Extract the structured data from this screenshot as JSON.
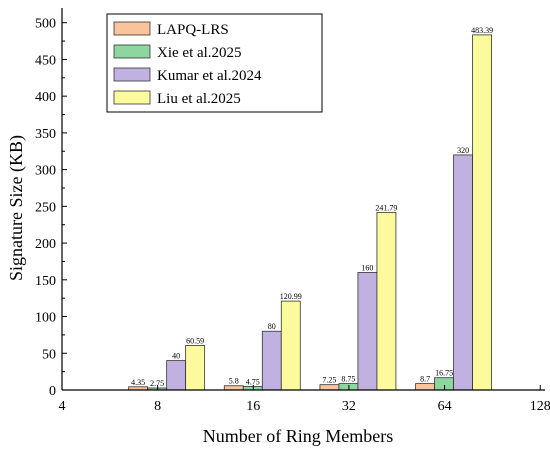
{
  "chart_data": {
    "type": "bar",
    "xlabel": "Number of Ring Members",
    "ylabel": "Signature Size (KB)",
    "x_ticks": [
      "4",
      "8",
      "16",
      "32",
      "64",
      "128"
    ],
    "categories": [
      "8",
      "16",
      "32",
      "64"
    ],
    "ylim": [
      0,
      520
    ],
    "y_ticks": [
      0,
      50,
      100,
      150,
      200,
      250,
      300,
      350,
      400,
      450,
      500
    ],
    "legend_position": "top-left",
    "series": [
      {
        "name": "LAPQ-LRS",
        "color": "#f9c39b",
        "values": [
          4.35,
          5.8,
          7.25,
          8.7
        ],
        "labels": [
          "4.35",
          "5.8",
          "7.25",
          "8.7"
        ]
      },
      {
        "name": "Xie et al.2025",
        "color": "#8ed6a0",
        "values": [
          2.75,
          4.75,
          8.75,
          16.75
        ],
        "labels": [
          "2.75",
          "4.75",
          "8.75",
          "16.75"
        ]
      },
      {
        "name": "Kumar et al.2024",
        "color": "#c0b1e0",
        "values": [
          40,
          80,
          160,
          320
        ],
        "labels": [
          "40",
          "80",
          "160",
          "320"
        ]
      },
      {
        "name": "Liu et al.2025",
        "color": "#fbfb9d",
        "values": [
          60.59,
          120.99,
          241.79,
          483.39
        ],
        "labels": [
          "60.59",
          "120.99",
          "241.79",
          "483.39"
        ]
      }
    ]
  }
}
